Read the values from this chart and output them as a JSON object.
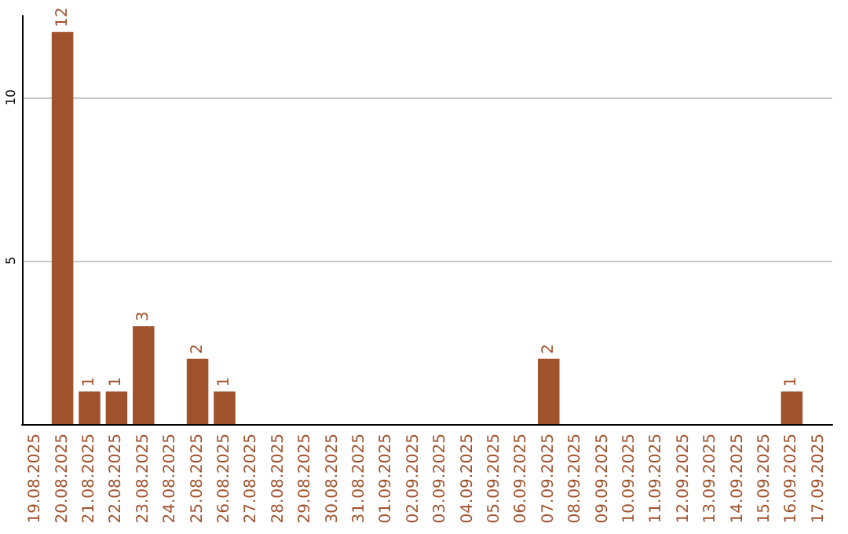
{
  "chart_data": {
    "type": "bar",
    "categories": [
      "19.08.2025",
      "20.08.2025",
      "21.08.2025",
      "22.08.2025",
      "23.08.2025",
      "24.08.2025",
      "25.08.2025",
      "26.08.2025",
      "27.08.2025",
      "28.08.2025",
      "29.08.2025",
      "30.08.2025",
      "31.08.2025",
      "01.09.2025",
      "02.09.2025",
      "03.09.2025",
      "04.09.2025",
      "05.09.2025",
      "06.09.2025",
      "07.09.2025",
      "08.09.2025",
      "09.09.2025",
      "10.09.2025",
      "11.09.2025",
      "12.09.2025",
      "13.09.2025",
      "14.09.2025",
      "15.09.2025",
      "16.09.2025",
      "17.09.2025"
    ],
    "values": [
      0,
      12,
      1,
      1,
      3,
      0,
      2,
      1,
      0,
      0,
      0,
      0,
      0,
      0,
      0,
      0,
      0,
      0,
      0,
      2,
      0,
      0,
      0,
      0,
      0,
      0,
      0,
      0,
      1,
      0
    ],
    "value_labels": [
      null,
      "12",
      "1",
      "1",
      "3",
      null,
      "2",
      "1",
      null,
      null,
      null,
      null,
      null,
      null,
      null,
      null,
      null,
      null,
      null,
      "2",
      null,
      null,
      null,
      null,
      null,
      null,
      null,
      null,
      "1",
      null
    ],
    "color": "#a0522d",
    "ylim": [
      0,
      12.5
    ],
    "yticks": [
      5,
      10
    ],
    "grid": "y"
  }
}
